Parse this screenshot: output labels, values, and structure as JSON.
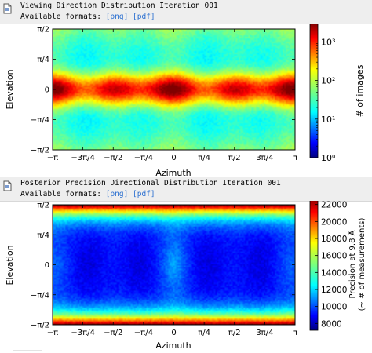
{
  "cells": [
    {
      "title": "Viewing Direction Distribution Iteration 001",
      "formats_label": "Available formats:",
      "formats": [
        "[png]",
        "[pdf]"
      ],
      "icon": "image-file-icon"
    },
    {
      "title": "Posterior Precision Directional Distribution Iteration 001",
      "formats_label": "Available formats:",
      "formats": [
        "[png]",
        "[pdf]"
      ],
      "icon": "image-file-icon"
    }
  ],
  "chart_data": [
    {
      "type": "heatmap",
      "xlabel": "Azimuth",
      "ylabel": "Elevation",
      "xticks": [
        "−π",
        "−3π/4",
        "−π/2",
        "−π/4",
        "0",
        "π/4",
        "π/2",
        "3π/4",
        "π"
      ],
      "yticks": [
        "π/2",
        "π/4",
        "0",
        "−π/4",
        "−π/2"
      ],
      "colorbar_label": "# of images",
      "colorbar_scale": "log",
      "colorbar_ticks": [
        "10⁰",
        "10¹",
        "10²",
        "10³"
      ],
      "colorbar_range": [
        1,
        3000
      ],
      "colormap": "jet",
      "pattern": "maximum along the equator (Elevation 0), falling toward both poles, with weak periodic variation along Azimuth"
    },
    {
      "type": "heatmap",
      "xlabel": "Azimuth",
      "ylabel": "Elevation",
      "xticks": [
        "−π",
        "−3π/4",
        "−π/2",
        "−π/4",
        "0",
        "π/4",
        "π/2",
        "3π/4",
        "π"
      ],
      "yticks": [
        "π/2",
        "π/4",
        "0",
        "−π/4",
        "−π/2"
      ],
      "colorbar_label_line1": "Precision at 9.8 Å",
      "colorbar_label_line2": "(~ # of measurements)",
      "colorbar_scale": "linear",
      "colorbar_ticks": [
        "22000",
        "20000",
        "18000",
        "16000",
        "14000",
        "12000",
        "10000",
        "8000"
      ],
      "colorbar_range": [
        7200,
        22800
      ],
      "colormap": "jet",
      "pattern": "maximum near both poles, minimum near the equator with dark blue lobes around Azimuth ±π/2 and ±3π/4"
    }
  ]
}
